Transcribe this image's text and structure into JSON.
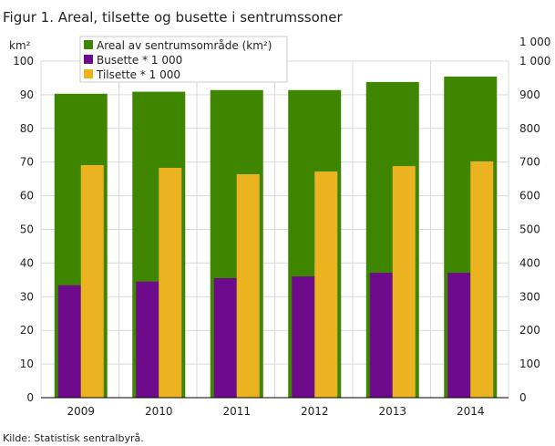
{
  "chart_data": {
    "type": "bar",
    "title": "Figur 1. Areal, tilsette og busette i sentrumssoner",
    "ylabel": "km²",
    "y2label": "1 000",
    "source": "Kilde: Statistisk sentralbyrå.",
    "categories": [
      "2009",
      "2010",
      "2011",
      "2012",
      "2013",
      "2014"
    ],
    "ylim": [
      0,
      100
    ],
    "y2lim": [
      0,
      1000
    ],
    "yticks": [
      "0",
      "10",
      "20",
      "30",
      "40",
      "50",
      "60",
      "70",
      "80",
      "90",
      "100"
    ],
    "y2ticks": [
      "0",
      "100",
      "200",
      "300",
      "400",
      "500",
      "600",
      "700",
      "800",
      "900",
      "1 000"
    ],
    "legend_position": "top-left",
    "grid": true,
    "series": [
      {
        "name": "Areal av sentrumsområde (km²)",
        "axis": "left",
        "color": "#3e8600",
        "values": [
          90.3,
          90.9,
          91.4,
          91.4,
          93.8,
          95.4
        ]
      },
      {
        "name": "Busette * 1 000",
        "axis": "right",
        "color": "#6e0a8c",
        "values": [
          334,
          345,
          355,
          360,
          371,
          371
        ]
      },
      {
        "name": "Tilsette * 1 000",
        "axis": "right",
        "color": "#ebb31f",
        "values": [
          691,
          683,
          664,
          672,
          688,
          702
        ]
      }
    ]
  }
}
